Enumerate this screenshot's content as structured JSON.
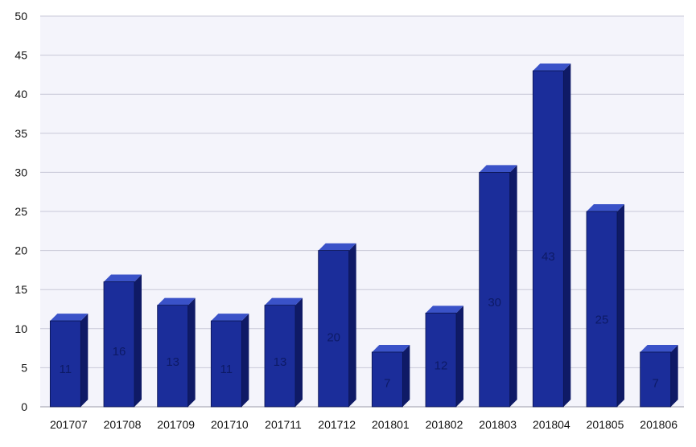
{
  "chart_data": {
    "type": "bar",
    "title": "",
    "xlabel": "",
    "ylabel": "",
    "categories": [
      "201707",
      "201708",
      "201709",
      "201710",
      "201711",
      "201712",
      "201801",
      "201802",
      "201803",
      "201804",
      "201805",
      "201806"
    ],
    "values": [
      11,
      16,
      13,
      11,
      13,
      20,
      7,
      12,
      30,
      43,
      25,
      7
    ],
    "ylim": [
      0,
      50
    ],
    "yticks": [
      0,
      5,
      10,
      15,
      20,
      25,
      30,
      35,
      40,
      45,
      50
    ],
    "grid": true,
    "legend": "none",
    "colors": {
      "bar_front": "#1b2d9a",
      "bar_top": "#3a52c8",
      "bar_side": "#0f1a66",
      "grid": "#c8c8d8",
      "plot_bg": "#f4f4fb",
      "data_label": "#0d1a66"
    }
  }
}
